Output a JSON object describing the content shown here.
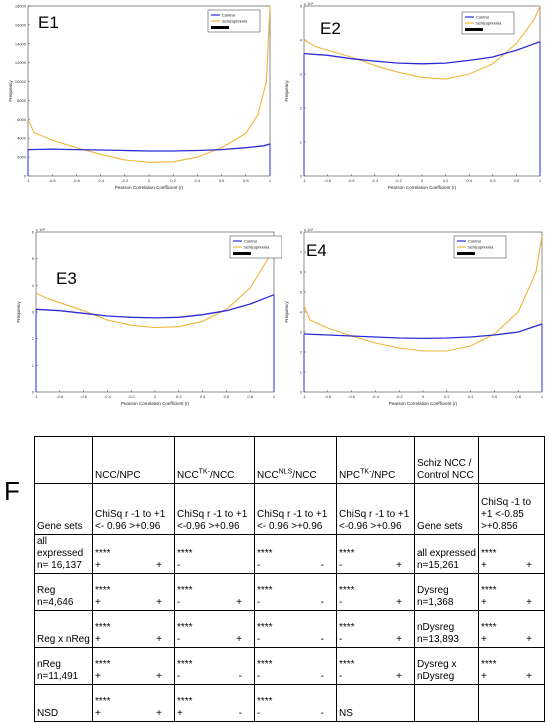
{
  "panels": [
    {
      "id": "E1",
      "label": "E1",
      "exponent": "",
      "legend": {
        "control": "Control",
        "schizo": "Schizophrenia"
      },
      "yticks": [
        "0",
        "2000",
        "4000",
        "6000",
        "8000",
        "10000",
        "12000",
        "14000",
        "16000",
        "18000"
      ],
      "xticks": [
        "-1",
        "-0.8",
        "-0.6",
        "-0.4",
        "-0.2",
        "0",
        "0.2",
        "0.4",
        "0.6",
        "0.8",
        "1"
      ],
      "xlabel": "Pearson Correlation Coefficient (r)",
      "ylabel": "Frequency",
      "ylim": [
        0,
        18000
      ],
      "control": [
        [
          -1,
          2800
        ],
        [
          -0.8,
          2850
        ],
        [
          -0.6,
          2800
        ],
        [
          -0.4,
          2750
        ],
        [
          -0.2,
          2700
        ],
        [
          0,
          2650
        ],
        [
          0.2,
          2650
        ],
        [
          0.4,
          2700
        ],
        [
          0.6,
          2800
        ],
        [
          0.8,
          3000
        ],
        [
          0.95,
          3200
        ],
        [
          1,
          3400
        ]
      ],
      "schizo": [
        [
          -1,
          6000
        ],
        [
          -0.95,
          4600
        ],
        [
          -0.8,
          3800
        ],
        [
          -0.6,
          3000
        ],
        [
          -0.4,
          2300
        ],
        [
          -0.2,
          1700
        ],
        [
          0,
          1450
        ],
        [
          0.2,
          1500
        ],
        [
          0.4,
          2000
        ],
        [
          0.6,
          3000
        ],
        [
          0.8,
          4500
        ],
        [
          0.9,
          6500
        ],
        [
          0.97,
          10000
        ],
        [
          1,
          18000
        ]
      ]
    },
    {
      "id": "E2",
      "label": "E2",
      "exponent": "x 10⁴",
      "legend": {
        "control": "Control",
        "schizo": "Schizophrenia"
      },
      "yticks": [
        "0",
        "1",
        "2",
        "3",
        "4",
        "5"
      ],
      "xticks": [
        "-1",
        "-0.8",
        "-0.6",
        "-0.4",
        "-0.2",
        "0",
        "0.2",
        "0.4",
        "0.6",
        "0.8",
        "1"
      ],
      "xlabel": "Pearson Correlation Coefficient (r)",
      "ylabel": "Frequency",
      "ylim": [
        0,
        5
      ],
      "control": [
        [
          -1,
          3.6
        ],
        [
          -0.8,
          3.55
        ],
        [
          -0.6,
          3.45
        ],
        [
          -0.4,
          3.38
        ],
        [
          -0.2,
          3.32
        ],
        [
          0,
          3.3
        ],
        [
          0.2,
          3.32
        ],
        [
          0.4,
          3.4
        ],
        [
          0.6,
          3.5
        ],
        [
          0.8,
          3.7
        ],
        [
          1,
          3.95
        ]
      ],
      "schizo": [
        [
          -1,
          4.0
        ],
        [
          -0.9,
          3.8
        ],
        [
          -0.6,
          3.5
        ],
        [
          -0.4,
          3.25
        ],
        [
          -0.2,
          3.05
        ],
        [
          0,
          2.9
        ],
        [
          0.2,
          2.85
        ],
        [
          0.4,
          3.0
        ],
        [
          0.6,
          3.3
        ],
        [
          0.8,
          3.9
        ],
        [
          0.95,
          4.6
        ],
        [
          1,
          5.0
        ]
      ]
    },
    {
      "id": "E3",
      "label": "E3",
      "exponent": "x 10⁴",
      "legend": {
        "control": "Control",
        "schizo": "Schizophrenia"
      },
      "yticks": [
        "0",
        "1",
        "2",
        "3",
        "4",
        "5",
        "6"
      ],
      "xticks": [
        "-1",
        "-0.8",
        "-0.6",
        "-0.4",
        "-0.2",
        "0",
        "0.2",
        "0.4",
        "0.6",
        "0.8",
        "1"
      ],
      "xlabel": "Pearson Correlation Coefficient (r)",
      "ylabel": "Frequency",
      "ylim": [
        0,
        6
      ],
      "control": [
        [
          -1,
          3.1
        ],
        [
          -0.8,
          3.05
        ],
        [
          -0.6,
          2.95
        ],
        [
          -0.4,
          2.85
        ],
        [
          -0.2,
          2.8
        ],
        [
          0,
          2.78
        ],
        [
          0.2,
          2.8
        ],
        [
          0.4,
          2.9
        ],
        [
          0.6,
          3.05
        ],
        [
          0.8,
          3.3
        ],
        [
          1,
          3.65
        ]
      ],
      "schizo": [
        [
          -1,
          3.7
        ],
        [
          -0.9,
          3.5
        ],
        [
          -0.6,
          3.05
        ],
        [
          -0.4,
          2.7
        ],
        [
          -0.2,
          2.5
        ],
        [
          0,
          2.42
        ],
        [
          0.2,
          2.45
        ],
        [
          0.4,
          2.65
        ],
        [
          0.6,
          3.1
        ],
        [
          0.8,
          3.9
        ],
        [
          0.95,
          5.0
        ],
        [
          1,
          5.9
        ]
      ]
    },
    {
      "id": "E4",
      "label": "E4",
      "exponent": "x 10⁴",
      "legend": {
        "control": "Control",
        "schizo": "Schizophrenia"
      },
      "yticks": [
        "0",
        "1",
        "2",
        "3",
        "4",
        "5",
        "6",
        "7",
        "8"
      ],
      "xticks": [
        "-1",
        "-0.8",
        "-0.6",
        "-0.4",
        "-0.2",
        "0",
        "0.2",
        "0.4",
        "0.6",
        "0.8",
        "1"
      ],
      "xlabel": "Pearson Correlation Coefficient (r)",
      "ylabel": "Frequency",
      "ylim": [
        0,
        8
      ],
      "control": [
        [
          -1,
          2.9
        ],
        [
          -0.8,
          2.85
        ],
        [
          -0.6,
          2.8
        ],
        [
          -0.4,
          2.75
        ],
        [
          -0.2,
          2.7
        ],
        [
          0,
          2.68
        ],
        [
          0.2,
          2.7
        ],
        [
          0.4,
          2.75
        ],
        [
          0.6,
          2.85
        ],
        [
          0.8,
          3.0
        ],
        [
          1,
          3.4
        ]
      ],
      "schizo": [
        [
          -1,
          4.3
        ],
        [
          -0.95,
          3.6
        ],
        [
          -0.8,
          3.2
        ],
        [
          -0.6,
          2.8
        ],
        [
          -0.4,
          2.45
        ],
        [
          -0.2,
          2.2
        ],
        [
          0,
          2.05
        ],
        [
          0.2,
          2.05
        ],
        [
          0.4,
          2.3
        ],
        [
          0.6,
          2.9
        ],
        [
          0.8,
          4.0
        ],
        [
          0.95,
          6.0
        ],
        [
          1,
          7.8
        ]
      ]
    }
  ],
  "colors": {
    "control": "#2b2bd6",
    "schizo": "#f0b43c"
  },
  "figure_label": "F",
  "table": {
    "header": [
      "",
      "NCC/NPC",
      "NCC|TK-|/NCC",
      "NCC|NLS|/NCC",
      "NPC|TK-|/NPC",
      "Schiz NCC / Control NCC",
      ""
    ],
    "subheader": [
      "Gene sets",
      "ChiSq  r -1 to +1 <- 0.96  >+0.96",
      "ChiSq r -1 to +1 <-0.96 >+0.96",
      "ChiSq r -1 to +1 <- 0.96  >+0.96",
      "ChiSq  r -1 to +1 <-0.96 >+0.96",
      "Gene sets",
      "ChiSq  -1 to +1 <-0.85 >+0.856"
    ],
    "rows": [
      {
        "left": "all expressed n= 16,137",
        "c1": [
          "****",
          "+",
          "+"
        ],
        "c2": [
          "****",
          "-",
          ""
        ],
        "c3": [
          "****",
          "-",
          "-"
        ],
        "c4": [
          "****",
          "-",
          "+"
        ],
        "right": "all expressed n=15,261",
        "c5": [
          "****",
          "+",
          "+"
        ]
      },
      {
        "left": "Reg n=4,646",
        "c1": [
          "****",
          "+",
          "+"
        ],
        "c2": [
          "****",
          "-",
          "+"
        ],
        "c3": [
          "****",
          "-",
          "-"
        ],
        "c4": [
          "****",
          "-",
          "+"
        ],
        "right": "Dysreg n=1,368",
        "c5": [
          "****",
          "+",
          "+"
        ]
      },
      {
        "left": "Reg x nReg",
        "c1": [
          "****",
          "+",
          "+"
        ],
        "c2": [
          "****",
          "-",
          "+"
        ],
        "c3": [
          "****",
          "-",
          "-"
        ],
        "c4": [
          "****",
          "-",
          "+"
        ],
        "right": "nDysreg n=13,893",
        "c5": [
          "****",
          "+",
          "+"
        ]
      },
      {
        "left": "nReg n=11,491",
        "c1": [
          "****",
          "+",
          "+"
        ],
        "c2": [
          "****",
          "-",
          "-"
        ],
        "c3": [
          "****",
          "-",
          "-"
        ],
        "c4": [
          "****",
          "-",
          "+"
        ],
        "right": "Dysreg x nDysreg",
        "c5": [
          "****",
          "+",
          "+"
        ]
      },
      {
        "left": "NSD",
        "c1": [
          "****",
          "+",
          "+"
        ],
        "c2": [
          "****",
          "+",
          "-"
        ],
        "c3": [
          "****",
          "-",
          "-"
        ],
        "c4": [
          "NS",
          "",
          ""
        ],
        "right": "",
        "c5": [
          "",
          "",
          ""
        ]
      }
    ]
  }
}
